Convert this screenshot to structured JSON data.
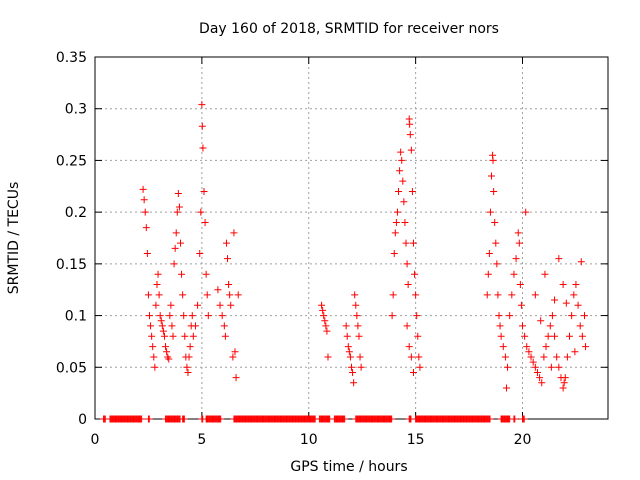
{
  "chart_data": {
    "type": "scatter",
    "title": "Day 160 of 2018, SRMTID for receiver nors",
    "xlabel": "GPS time / hours",
    "ylabel": "SRMTID / TECUs",
    "xlim": [
      0,
      24
    ],
    "ylim": [
      0,
      0.35
    ],
    "xticks": [
      0,
      5,
      10,
      15,
      20
    ],
    "xtick_labels": [
      "0",
      "5",
      "10",
      "15",
      "20"
    ],
    "yticks": [
      0,
      0.05,
      0.1,
      0.15,
      0.2,
      0.25,
      0.3,
      0.35
    ],
    "ytick_labels": [
      "0",
      "0.05",
      "0.1",
      "0.15",
      "0.2",
      "0.25",
      "0.3",
      "0.35"
    ],
    "grid": true,
    "marker": "+",
    "color": "#ff0000",
    "series": [
      {
        "name": "SRMTID",
        "points": [
          [
            2.25,
            0.222
          ],
          [
            2.3,
            0.212
          ],
          [
            2.35,
            0.2
          ],
          [
            2.4,
            0.185
          ],
          [
            2.45,
            0.16
          ],
          [
            2.5,
            0.12
          ],
          [
            2.55,
            0.1
          ],
          [
            2.6,
            0.09
          ],
          [
            2.65,
            0.08
          ],
          [
            2.7,
            0.07
          ],
          [
            2.75,
            0.06
          ],
          [
            2.8,
            0.05
          ],
          [
            2.85,
            0.11
          ],
          [
            2.9,
            0.13
          ],
          [
            2.95,
            0.14
          ],
          [
            3.0,
            0.12
          ],
          [
            3.05,
            0.1
          ],
          [
            3.1,
            0.095
          ],
          [
            3.15,
            0.09
          ],
          [
            3.2,
            0.085
          ],
          [
            3.25,
            0.08
          ],
          [
            3.3,
            0.07
          ],
          [
            3.35,
            0.065
          ],
          [
            3.4,
            0.06
          ],
          [
            3.45,
            0.058
          ],
          [
            3.5,
            0.1
          ],
          [
            3.55,
            0.11
          ],
          [
            3.6,
            0.09
          ],
          [
            3.65,
            0.08
          ],
          [
            3.7,
            0.15
          ],
          [
            3.75,
            0.165
          ],
          [
            3.8,
            0.18
          ],
          [
            3.85,
            0.2
          ],
          [
            3.9,
            0.218
          ],
          [
            3.95,
            0.205
          ],
          [
            4.0,
            0.17
          ],
          [
            4.05,
            0.14
          ],
          [
            4.1,
            0.12
          ],
          [
            4.15,
            0.1
          ],
          [
            4.2,
            0.08
          ],
          [
            4.25,
            0.06
          ],
          [
            4.3,
            0.05
          ],
          [
            4.35,
            0.045
          ],
          [
            4.4,
            0.06
          ],
          [
            4.45,
            0.07
          ],
          [
            4.5,
            0.09
          ],
          [
            4.55,
            0.1
          ],
          [
            4.6,
            0.08
          ],
          [
            4.7,
            0.09
          ],
          [
            4.8,
            0.11
          ],
          [
            4.9,
            0.16
          ],
          [
            4.95,
            0.2
          ],
          [
            5.0,
            0.304
          ],
          [
            5.02,
            0.283
          ],
          [
            5.05,
            0.262
          ],
          [
            5.1,
            0.22
          ],
          [
            5.15,
            0.19
          ],
          [
            5.2,
            0.14
          ],
          [
            5.25,
            0.12
          ],
          [
            5.3,
            0.1
          ],
          [
            5.75,
            0.125
          ],
          [
            5.85,
            0.11
          ],
          [
            5.95,
            0.1
          ],
          [
            6.05,
            0.09
          ],
          [
            6.1,
            0.08
          ],
          [
            6.15,
            0.17
          ],
          [
            6.2,
            0.155
          ],
          [
            6.25,
            0.13
          ],
          [
            6.3,
            0.12
          ],
          [
            6.35,
            0.11
          ],
          [
            6.45,
            0.06
          ],
          [
            6.5,
            0.18
          ],
          [
            6.55,
            0.065
          ],
          [
            6.6,
            0.04
          ],
          [
            6.7,
            0.12
          ],
          [
            10.6,
            0.11
          ],
          [
            10.65,
            0.105
          ],
          [
            10.7,
            0.1
          ],
          [
            10.75,
            0.095
          ],
          [
            10.8,
            0.09
          ],
          [
            10.85,
            0.085
          ],
          [
            10.9,
            0.06
          ],
          [
            11.75,
            0.09
          ],
          [
            11.8,
            0.08
          ],
          [
            11.85,
            0.07
          ],
          [
            11.9,
            0.065
          ],
          [
            11.95,
            0.06
          ],
          [
            12.0,
            0.05
          ],
          [
            12.05,
            0.045
          ],
          [
            12.1,
            0.035
          ],
          [
            12.15,
            0.12
          ],
          [
            12.2,
            0.11
          ],
          [
            12.25,
            0.1
          ],
          [
            12.3,
            0.09
          ],
          [
            12.35,
            0.08
          ],
          [
            12.4,
            0.06
          ],
          [
            12.45,
            0.05
          ],
          [
            13.9,
            0.1
          ],
          [
            13.95,
            0.12
          ],
          [
            14.0,
            0.16
          ],
          [
            14.05,
            0.18
          ],
          [
            14.1,
            0.19
          ],
          [
            14.15,
            0.2
          ],
          [
            14.2,
            0.22
          ],
          [
            14.25,
            0.24
          ],
          [
            14.3,
            0.258
          ],
          [
            14.35,
            0.25
          ],
          [
            14.4,
            0.23
          ],
          [
            14.45,
            0.21
          ],
          [
            14.5,
            0.19
          ],
          [
            14.55,
            0.17
          ],
          [
            14.6,
            0.15
          ],
          [
            14.65,
            0.13
          ],
          [
            14.7,
            0.29
          ],
          [
            14.72,
            0.285
          ],
          [
            14.75,
            0.275
          ],
          [
            14.8,
            0.26
          ],
          [
            14.85,
            0.22
          ],
          [
            14.9,
            0.17
          ],
          [
            14.95,
            0.14
          ],
          [
            15.0,
            0.12
          ],
          [
            15.05,
            0.1
          ],
          [
            15.1,
            0.08
          ],
          [
            15.15,
            0.06
          ],
          [
            15.2,
            0.05
          ],
          [
            14.6,
            0.09
          ],
          [
            14.7,
            0.07
          ],
          [
            14.8,
            0.06
          ],
          [
            14.9,
            0.045
          ],
          [
            18.35,
            0.12
          ],
          [
            18.4,
            0.14
          ],
          [
            18.45,
            0.16
          ],
          [
            18.5,
            0.2
          ],
          [
            18.55,
            0.235
          ],
          [
            18.6,
            0.255
          ],
          [
            18.62,
            0.25
          ],
          [
            18.65,
            0.22
          ],
          [
            18.7,
            0.19
          ],
          [
            18.75,
            0.17
          ],
          [
            18.8,
            0.15
          ],
          [
            18.85,
            0.12
          ],
          [
            18.9,
            0.1
          ],
          [
            18.95,
            0.09
          ],
          [
            19.0,
            0.08
          ],
          [
            19.1,
            0.07
          ],
          [
            19.2,
            0.06
          ],
          [
            19.3,
            0.05
          ],
          [
            19.4,
            0.1
          ],
          [
            19.5,
            0.12
          ],
          [
            19.6,
            0.14
          ],
          [
            19.7,
            0.155
          ],
          [
            19.8,
            0.18
          ],
          [
            19.85,
            0.17
          ],
          [
            19.9,
            0.13
          ],
          [
            19.95,
            0.11
          ],
          [
            20.0,
            0.09
          ],
          [
            20.1,
            0.08
          ],
          [
            20.2,
            0.07
          ],
          [
            20.3,
            0.065
          ],
          [
            20.4,
            0.06
          ],
          [
            20.5,
            0.055
          ],
          [
            20.6,
            0.05
          ],
          [
            20.7,
            0.045
          ],
          [
            20.8,
            0.04
          ],
          [
            20.9,
            0.035
          ],
          [
            21.0,
            0.06
          ],
          [
            21.1,
            0.07
          ],
          [
            21.2,
            0.08
          ],
          [
            21.3,
            0.09
          ],
          [
            21.4,
            0.1
          ],
          [
            21.5,
            0.08
          ],
          [
            21.6,
            0.06
          ],
          [
            21.7,
            0.05
          ],
          [
            21.8,
            0.04
          ],
          [
            21.9,
            0.03
          ],
          [
            22.0,
            0.04
          ],
          [
            22.1,
            0.06
          ],
          [
            22.2,
            0.08
          ],
          [
            22.3,
            0.1
          ],
          [
            22.4,
            0.12
          ],
          [
            22.5,
            0.13
          ],
          [
            22.6,
            0.11
          ],
          [
            22.7,
            0.09
          ],
          [
            22.8,
            0.08
          ],
          [
            22.9,
            0.1
          ],
          [
            22.95,
            0.07
          ],
          [
            22.75,
            0.152
          ],
          [
            21.7,
            0.155
          ],
          [
            21.9,
            0.13
          ],
          [
            20.15,
            0.2
          ],
          [
            20.6,
            0.12
          ],
          [
            21.05,
            0.14
          ],
          [
            21.5,
            0.115
          ],
          [
            22.05,
            0.112
          ],
          [
            20.85,
            0.095
          ],
          [
            21.35,
            0.05
          ],
          [
            21.95,
            0.035
          ],
          [
            22.45,
            0.065
          ],
          [
            19.25,
            0.03
          ]
        ]
      }
    ],
    "zero_values": {
      "note": "dense row of markers at y = 0",
      "x_ranges": [
        [
          0.4,
          0.5
        ],
        [
          0.7,
          2.2
        ],
        [
          2.5,
          2.55
        ],
        [
          3.3,
          4.0
        ],
        [
          4.1,
          4.2
        ],
        [
          5.0,
          5.05
        ],
        [
          5.2,
          5.9
        ],
        [
          6.5,
          10.3
        ],
        [
          10.5,
          11.0
        ],
        [
          11.2,
          11.7
        ],
        [
          12.2,
          13.9
        ],
        [
          14.7,
          14.8
        ],
        [
          15.0,
          18.5
        ],
        [
          19.0,
          19.4
        ],
        [
          19.6,
          19.65
        ],
        [
          20.0,
          20.1
        ]
      ]
    }
  }
}
